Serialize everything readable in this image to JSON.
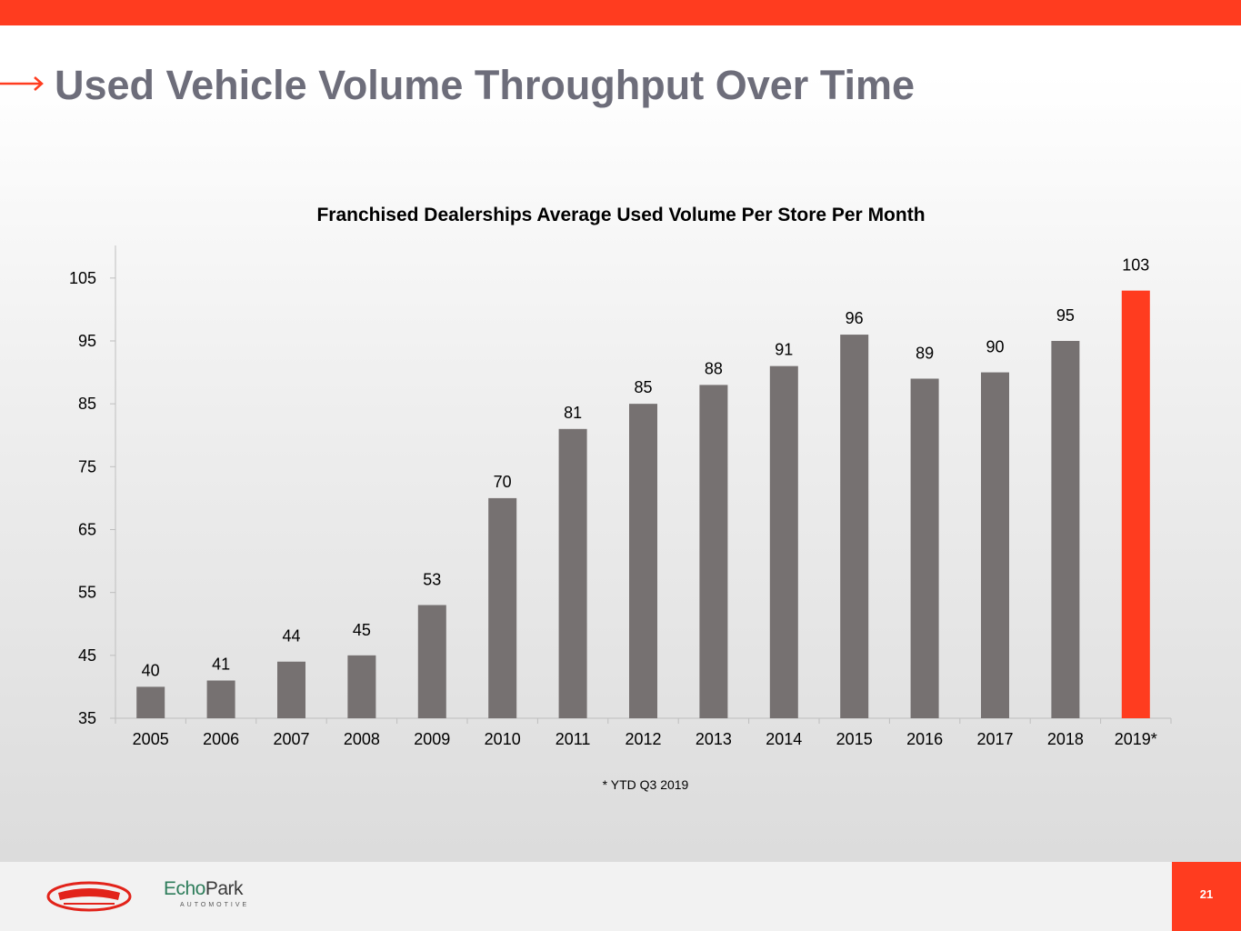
{
  "header": {
    "title": "Used Vehicle Volume Throughput Over Time"
  },
  "colors": {
    "accent": "#ff3c1f",
    "bar": "#767171",
    "title": "#6d6d7a"
  },
  "chart_data": {
    "type": "bar",
    "title": "Franchised Dealerships Average Used Volume Per Store Per Month",
    "xlabel": "",
    "ylabel": "",
    "categories": [
      "2005",
      "2006",
      "2007",
      "2008",
      "2009",
      "2010",
      "2011",
      "2012",
      "2013",
      "2014",
      "2015",
      "2016",
      "2017",
      "2018",
      "2019*"
    ],
    "values": [
      40,
      41,
      44,
      45,
      53,
      70,
      81,
      85,
      88,
      91,
      96,
      89,
      90,
      95,
      103
    ],
    "highlight_index": 14,
    "yticks": [
      35,
      45,
      55,
      65,
      75,
      85,
      95,
      105
    ],
    "ylim": [
      35,
      110
    ],
    "grid": false,
    "footnote": "* YTD Q3 2019"
  },
  "footer": {
    "logos": [
      "Sonic Automotive",
      "EchoPark Automotive"
    ],
    "echopark_word_1": "Echo",
    "echopark_word_2": "Park",
    "echopark_sub": "AUTOMOTIVE",
    "page_number": "21"
  }
}
